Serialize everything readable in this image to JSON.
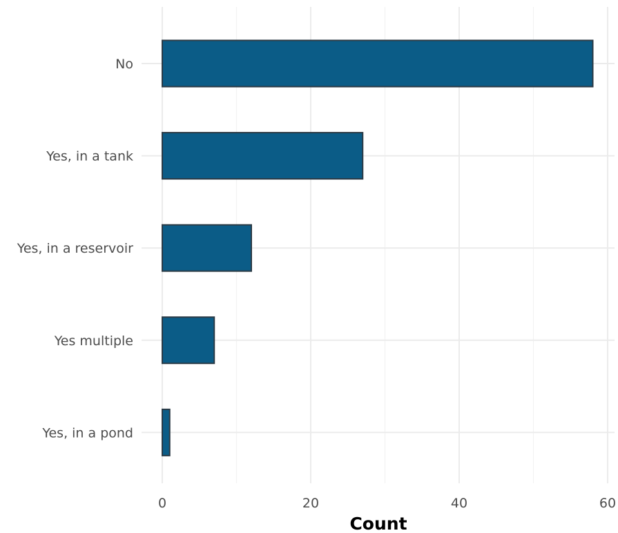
{
  "chart_data": {
    "type": "bar",
    "orientation": "horizontal",
    "categories": [
      "No",
      "Yes, in a tank",
      "Yes, in a reservoir",
      "Yes multiple",
      "Yes, in a pond"
    ],
    "values": [
      58,
      27,
      12,
      7,
      1
    ],
    "xlabel": "Count",
    "ylabel": "",
    "xlim": [
      0,
      60
    ],
    "x_ticks": [
      0,
      20,
      40,
      60
    ],
    "grid": true,
    "legend": "none",
    "colors": {
      "bar_fill": "#0b5c87",
      "bar_stroke": "#2b3a45"
    }
  }
}
